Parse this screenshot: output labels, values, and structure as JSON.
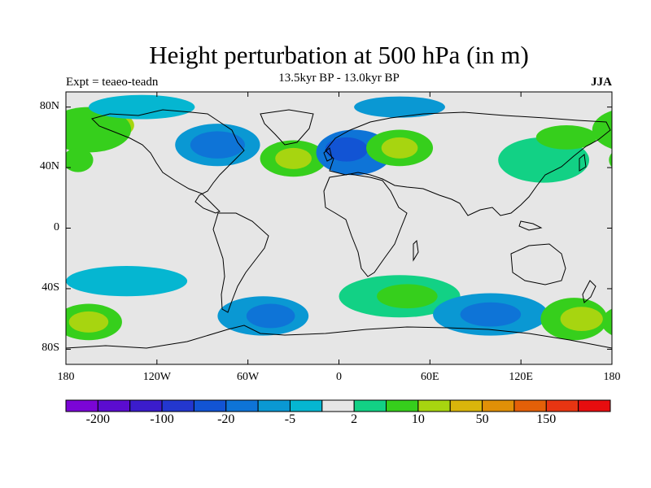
{
  "title": "Height perturbation at 500 hPa (in m)",
  "subtitle_left": "Expt = teaeo-teadn",
  "subtitle_center": "13.5kyr BP - 13.0kyr BP",
  "subtitle_right": "JJA",
  "map": {
    "projection": "cylindrical-equidistant",
    "lon_range": [
      -180,
      180
    ],
    "lat_range": [
      -90,
      90
    ],
    "y_ticks": [
      {
        "lat": 80,
        "label": "80N"
      },
      {
        "lat": 40,
        "label": "40N"
      },
      {
        "lat": 0,
        "label": "0"
      },
      {
        "lat": -40,
        "label": "40S"
      },
      {
        "lat": -80,
        "label": "80S"
      }
    ],
    "x_ticks": [
      {
        "lon": -180,
        "label": "180"
      },
      {
        "lon": -120,
        "label": "120W"
      },
      {
        "lon": -60,
        "label": "60W"
      },
      {
        "lon": 0,
        "label": "0"
      },
      {
        "lon": 60,
        "label": "60E"
      },
      {
        "lon": 120,
        "label": "120E"
      },
      {
        "lon": 180,
        "label": "180"
      }
    ],
    "background_color": "#e6e6e6",
    "coastline_color": "#000000"
  },
  "colorbar": {
    "colors": [
      "#7b05d6",
      "#5b0cd0",
      "#3b1ccc",
      "#2337cf",
      "#1254d4",
      "#0e74d7",
      "#0a98d3",
      "#05b6d1",
      "#e6e6e6",
      "#12d185",
      "#36cf1c",
      "#a7d510",
      "#d9b50b",
      "#e19007",
      "#e46008",
      "#e83512",
      "#e70d0f"
    ],
    "labels": [
      {
        "boundary": 1,
        "text": "-200"
      },
      {
        "boundary": 3,
        "text": "-100"
      },
      {
        "boundary": 5,
        "text": "-20"
      },
      {
        "boundary": 7,
        "text": "-5"
      },
      {
        "boundary": 9,
        "text": "2"
      },
      {
        "boundary": 11,
        "text": "10"
      },
      {
        "boundary": 13,
        "text": "50"
      },
      {
        "boundary": 15,
        "text": "150"
      }
    ]
  },
  "chart_data": {
    "type": "heatmap",
    "variable": "500 hPa height perturbation",
    "units": "m",
    "season": "JJA",
    "levels": [
      -200,
      -150,
      -100,
      -50,
      -20,
      -10,
      -5,
      -2,
      2,
      5,
      10,
      20,
      50,
      100,
      150,
      200
    ],
    "anomaly_blobs": [
      {
        "lon": -155,
        "lat": 68,
        "rx": 20,
        "ry": 10,
        "value": 22,
        "color": "#a7d510"
      },
      {
        "lon": -165,
        "lat": 65,
        "rx": 28,
        "ry": 15,
        "value": 8,
        "color": "#36cf1c"
      },
      {
        "lon": -172,
        "lat": 45,
        "rx": 10,
        "ry": 8,
        "value": 6,
        "color": "#36cf1c"
      },
      {
        "lon": -130,
        "lat": 80,
        "rx": 35,
        "ry": 8,
        "value": -4,
        "color": "#05b6d1"
      },
      {
        "lon": -80,
        "lat": 55,
        "rx": 28,
        "ry": 14,
        "value": -12,
        "color": "#0a98d3"
      },
      {
        "lon": -80,
        "lat": 55,
        "rx": 18,
        "ry": 9,
        "value": -22,
        "color": "#0e74d7"
      },
      {
        "lon": -30,
        "lat": 46,
        "rx": 22,
        "ry": 12,
        "value": 8,
        "color": "#36cf1c"
      },
      {
        "lon": -30,
        "lat": 46,
        "rx": 12,
        "ry": 7,
        "value": 25,
        "color": "#a7d510"
      },
      {
        "lon": 10,
        "lat": 50,
        "rx": 25,
        "ry": 15,
        "value": -22,
        "color": "#0e74d7"
      },
      {
        "lon": 5,
        "lat": 52,
        "rx": 14,
        "ry": 8,
        "value": -55,
        "color": "#1254d4"
      },
      {
        "lon": 40,
        "lat": 53,
        "rx": 22,
        "ry": 12,
        "value": 8,
        "color": "#36cf1c"
      },
      {
        "lon": 40,
        "lat": 53,
        "rx": 12,
        "ry": 7,
        "value": 25,
        "color": "#a7d510"
      },
      {
        "lon": 40,
        "lat": 80,
        "rx": 30,
        "ry": 7,
        "value": -8,
        "color": "#0a98d3"
      },
      {
        "lon": 135,
        "lat": 45,
        "rx": 30,
        "ry": 15,
        "value": 4,
        "color": "#12d185"
      },
      {
        "lon": 150,
        "lat": 60,
        "rx": 20,
        "ry": 8,
        "value": 8,
        "color": "#36cf1c"
      },
      {
        "lon": -140,
        "lat": -35,
        "rx": 40,
        "ry": 10,
        "value": -4,
        "color": "#05b6d1"
      },
      {
        "lon": -50,
        "lat": -58,
        "rx": 30,
        "ry": 13,
        "value": -12,
        "color": "#0a98d3"
      },
      {
        "lon": -45,
        "lat": -58,
        "rx": 16,
        "ry": 8,
        "value": -25,
        "color": "#0e74d7"
      },
      {
        "lon": -165,
        "lat": -62,
        "rx": 22,
        "ry": 12,
        "value": 8,
        "color": "#36cf1c"
      },
      {
        "lon": -165,
        "lat": -62,
        "rx": 13,
        "ry": 7,
        "value": 22,
        "color": "#a7d510"
      },
      {
        "lon": 40,
        "lat": -45,
        "rx": 40,
        "ry": 14,
        "value": 4,
        "color": "#12d185"
      },
      {
        "lon": 45,
        "lat": -45,
        "rx": 20,
        "ry": 8,
        "value": 8,
        "color": "#36cf1c"
      },
      {
        "lon": 100,
        "lat": -57,
        "rx": 38,
        "ry": 14,
        "value": -12,
        "color": "#0a98d3"
      },
      {
        "lon": 100,
        "lat": -57,
        "rx": 20,
        "ry": 8,
        "value": -25,
        "color": "#0e74d7"
      },
      {
        "lon": 155,
        "lat": -60,
        "rx": 22,
        "ry": 14,
        "value": 8,
        "color": "#36cf1c"
      },
      {
        "lon": 160,
        "lat": -60,
        "rx": 14,
        "ry": 8,
        "value": 22,
        "color": "#a7d510"
      }
    ]
  }
}
